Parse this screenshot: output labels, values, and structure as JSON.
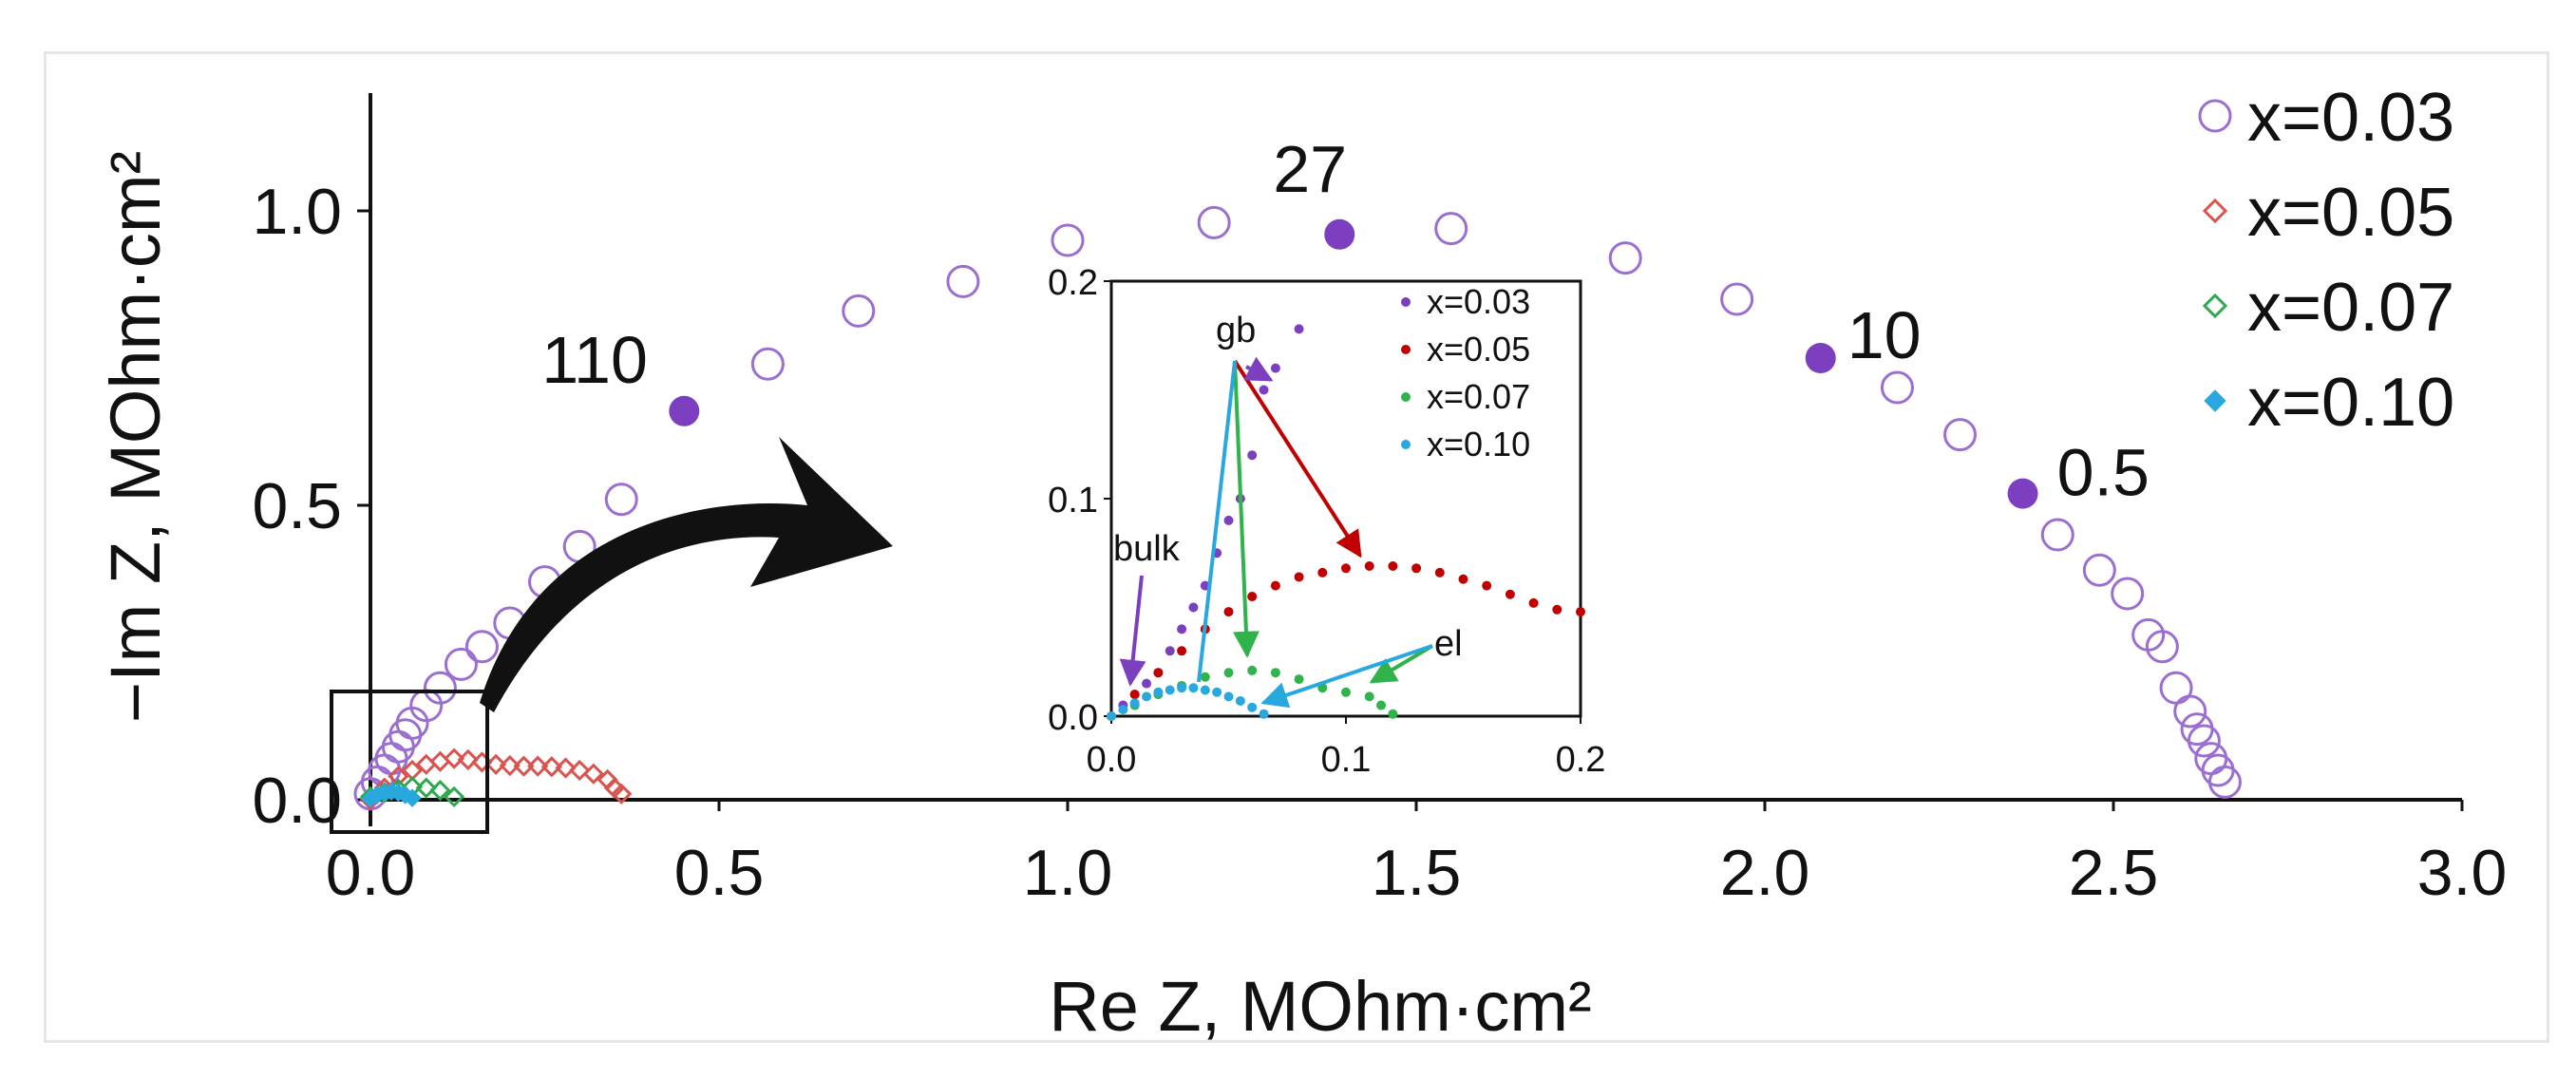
{
  "chart_data": {
    "type": "scatter",
    "title": "",
    "xlabel": "Re Z, MOhm·cm²",
    "ylabel": "−Im Z, MOhm·cm²",
    "xlim": [
      0,
      3.0
    ],
    "ylim": [
      0,
      1.2
    ],
    "x_ticks": [
      "0.0",
      "0.5",
      "1.0",
      "1.5",
      "2.0",
      "2.5",
      "3.0"
    ],
    "y_ticks": [
      "0.0",
      "0.5",
      "1.0"
    ],
    "legend_position": "right",
    "series": [
      {
        "name": "x=0.03",
        "marker": "open-circle",
        "color": "#9b6fd1",
        "x": [
          0.0,
          0.01,
          0.02,
          0.03,
          0.04,
          0.05,
          0.06,
          0.08,
          0.1,
          0.13,
          0.16,
          0.2,
          0.25,
          0.3,
          0.36,
          0.57,
          0.7,
          0.85,
          1.0,
          1.21,
          1.55,
          1.8,
          1.96,
          2.19,
          2.28,
          2.42,
          2.48,
          2.52,
          2.55,
          2.57,
          2.59,
          2.61,
          2.62,
          2.63,
          2.64,
          2.65,
          2.66
        ],
        "y": [
          0.01,
          0.03,
          0.05,
          0.07,
          0.09,
          0.11,
          0.13,
          0.16,
          0.19,
          0.23,
          0.26,
          0.3,
          0.37,
          0.43,
          0.51,
          0.74,
          0.83,
          0.88,
          0.95,
          0.98,
          0.97,
          0.92,
          0.85,
          0.7,
          0.62,
          0.45,
          0.39,
          0.35,
          0.28,
          0.26,
          0.19,
          0.15,
          0.12,
          0.1,
          0.07,
          0.05,
          0.03
        ]
      },
      {
        "name": "x=0.05",
        "marker": "open-diamond",
        "color": "#d9534f",
        "x": [
          0.0,
          0.02,
          0.04,
          0.06,
          0.08,
          0.1,
          0.12,
          0.14,
          0.16,
          0.18,
          0.2,
          0.22,
          0.24,
          0.26,
          0.28,
          0.3,
          0.32,
          0.34,
          0.35,
          0.36
        ],
        "y": [
          0.0,
          0.02,
          0.04,
          0.05,
          0.06,
          0.065,
          0.07,
          0.068,
          0.064,
          0.06,
          0.058,
          0.057,
          0.057,
          0.056,
          0.054,
          0.05,
          0.044,
          0.034,
          0.02,
          0.01
        ]
      },
      {
        "name": "x=0.07",
        "marker": "open-diamond",
        "color": "#2fa84f",
        "x": [
          0.0,
          0.02,
          0.04,
          0.06,
          0.08,
          0.1,
          0.12
        ],
        "y": [
          0.005,
          0.012,
          0.018,
          0.022,
          0.02,
          0.016,
          0.005
        ]
      },
      {
        "name": "x=0.10",
        "marker": "filled-diamond",
        "color": "#29a8e0",
        "x": [
          0.0,
          0.01,
          0.02,
          0.03,
          0.04,
          0.05,
          0.06
        ],
        "y": [
          0.002,
          0.008,
          0.012,
          0.014,
          0.012,
          0.008,
          0.003
        ]
      }
    ],
    "highlighted_points": [
      {
        "x": 0.45,
        "y": 0.66,
        "label": "110"
      },
      {
        "x": 1.39,
        "y": 0.96,
        "label": "27"
      },
      {
        "x": 2.08,
        "y": 0.75,
        "label": "10"
      },
      {
        "x": 2.37,
        "y": 0.52,
        "label": "0.5"
      }
    ],
    "inset": {
      "xlim": [
        0,
        0.2
      ],
      "ylim": [
        0,
        0.2
      ],
      "x_ticks": [
        "0.0",
        "0.1",
        "0.2"
      ],
      "y_ticks": [
        "0.0",
        "0.1",
        "0.2"
      ],
      "legend": [
        "x=0.03",
        "x=0.05",
        "x=0.07",
        "x=0.10"
      ],
      "annotations": [
        "gb",
        "bulk",
        "el"
      ],
      "series": [
        {
          "name": "x=0.03",
          "color": "#7b3fbf",
          "x": [
            0.0,
            0.005,
            0.01,
            0.015,
            0.02,
            0.025,
            0.03,
            0.035,
            0.04,
            0.045,
            0.05,
            0.055,
            0.06,
            0.065,
            0.07,
            0.08
          ],
          "y": [
            0.0,
            0.005,
            0.01,
            0.015,
            0.02,
            0.03,
            0.04,
            0.05,
            0.06,
            0.075,
            0.09,
            0.1,
            0.12,
            0.15,
            0.16,
            0.178
          ]
        },
        {
          "name": "x=0.05",
          "color": "#c00000",
          "x": [
            0.0,
            0.01,
            0.02,
            0.03,
            0.04,
            0.05,
            0.06,
            0.07,
            0.08,
            0.09,
            0.1,
            0.11,
            0.12,
            0.13,
            0.14,
            0.15,
            0.16,
            0.17,
            0.18,
            0.19,
            0.2
          ],
          "y": [
            0.0,
            0.01,
            0.02,
            0.03,
            0.04,
            0.048,
            0.055,
            0.06,
            0.064,
            0.066,
            0.068,
            0.069,
            0.069,
            0.068,
            0.066,
            0.063,
            0.06,
            0.056,
            0.052,
            0.049,
            0.048
          ]
        },
        {
          "name": "x=0.07",
          "color": "#2fb34a",
          "x": [
            0.0,
            0.01,
            0.02,
            0.03,
            0.04,
            0.05,
            0.06,
            0.07,
            0.08,
            0.09,
            0.1,
            0.11,
            0.115,
            0.12
          ],
          "y": [
            0.0,
            0.005,
            0.01,
            0.014,
            0.018,
            0.02,
            0.021,
            0.02,
            0.017,
            0.013,
            0.011,
            0.009,
            0.005,
            0.001
          ]
        },
        {
          "name": "x=0.10",
          "color": "#29a8e0",
          "x": [
            0.0,
            0.005,
            0.01,
            0.015,
            0.02,
            0.025,
            0.03,
            0.035,
            0.04,
            0.045,
            0.05,
            0.055,
            0.06,
            0.065
          ],
          "y": [
            0.0,
            0.003,
            0.006,
            0.009,
            0.011,
            0.012,
            0.013,
            0.013,
            0.012,
            0.011,
            0.009,
            0.007,
            0.004,
            0.001
          ]
        }
      ]
    }
  }
}
